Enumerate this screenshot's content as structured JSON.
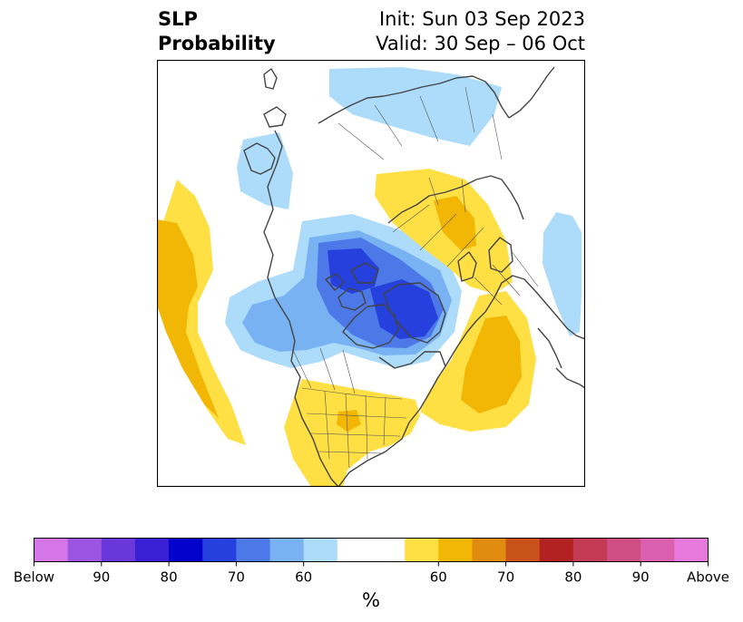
{
  "title": {
    "left_line1": "SLP",
    "left_line2": "Probability",
    "right_line1": "Init: Sun 03 Sep 2023",
    "right_line2": "Valid: 30 Sep – 06 Oct"
  },
  "colorbar": {
    "unit_label": "%",
    "tick_labels": [
      "Below",
      "90",
      "80",
      "70",
      "60",
      "60",
      "70",
      "80",
      "90",
      "Above"
    ],
    "colors": [
      "#d575e8",
      "#9b55e0",
      "#6a38da",
      "#3a1fd4",
      "#0202cc",
      "#2540dc",
      "#4c78e8",
      "#78b2f2",
      "#addcfb",
      "#ffffff",
      "#ffe044",
      "#f2b705",
      "#e08c10",
      "#c8521a",
      "#b22222",
      "#c23a54",
      "#cf4e84",
      "#dc60b0",
      "#e779dc"
    ]
  },
  "colors": {
    "below_light": "#addcfb",
    "below_mid": "#78b2f2",
    "below_strong": "#4c78e8",
    "below_stronger": "#2540dc",
    "above_light": "#ffe044",
    "above_mid": "#f2b705",
    "above_strong": "#e08c10",
    "coastline": "#444444"
  }
}
